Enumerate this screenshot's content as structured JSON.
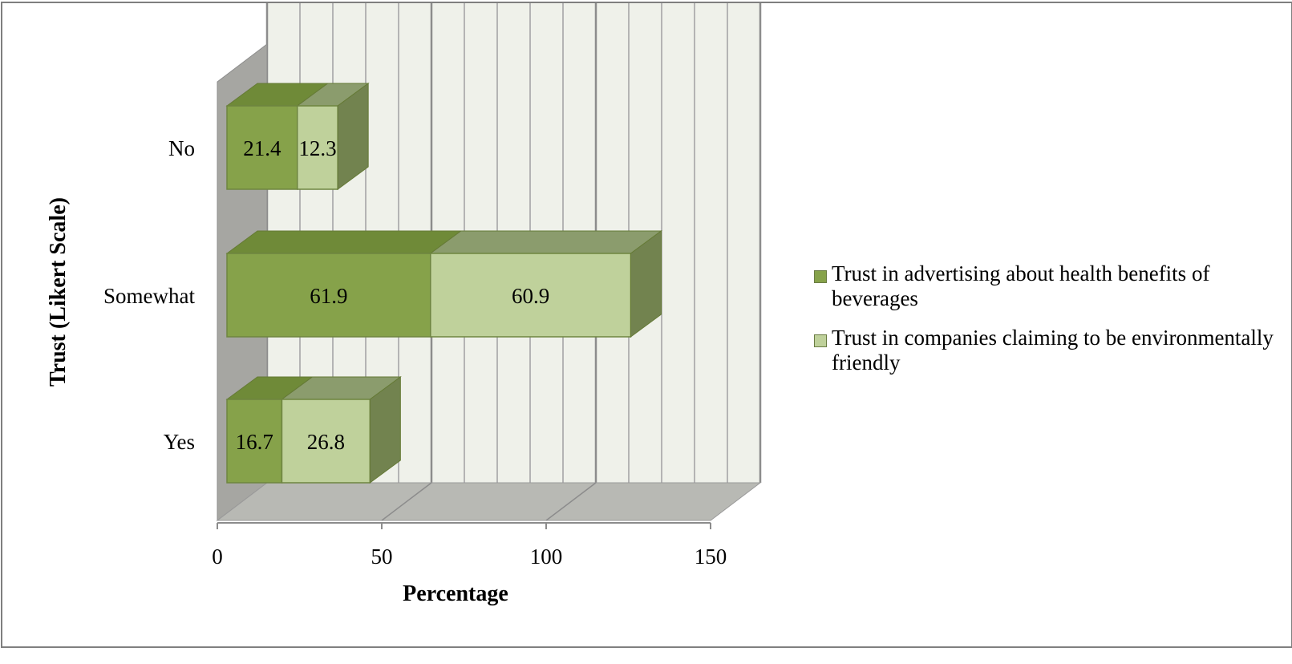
{
  "chart_data": {
    "type": "bar",
    "orientation": "horizontal",
    "stacked": true,
    "three_d": true,
    "categories": [
      "No",
      "Somewhat",
      "Yes"
    ],
    "series": [
      {
        "name": "Trust in advertising about health benefits of beverages",
        "values": [
          21.4,
          61.9,
          16.7
        ],
        "color": "#86a24a"
      },
      {
        "name": "Trust in companies claiming  to be environmentally friendly",
        "values": [
          12.3,
          60.9,
          26.8
        ],
        "color": "#bfd19b"
      }
    ],
    "data_labels": [
      [
        "21.4",
        "61.9",
        "16.7"
      ],
      [
        "12.3",
        "60.9",
        "26.8"
      ]
    ],
    "xlabel": "Percentage",
    "ylabel": "Trust (Likert  Scale)",
    "xlim": [
      0,
      150
    ],
    "xticks": [
      "0",
      "50",
      "100",
      "150"
    ],
    "grid": true,
    "legend_position": "right"
  }
}
